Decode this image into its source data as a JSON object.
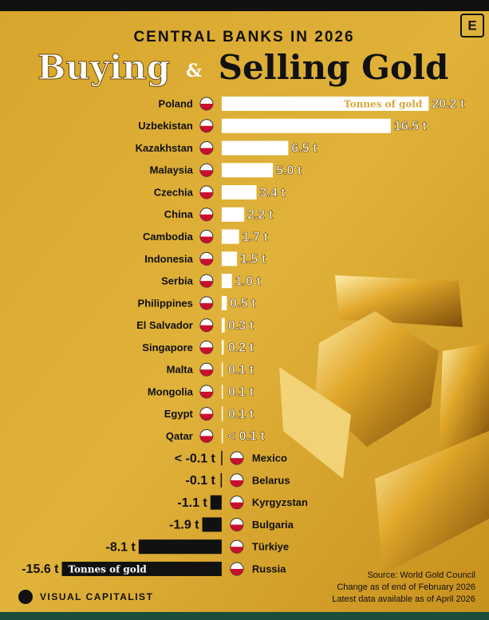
{
  "chart_data": {
    "type": "bar",
    "orientation": "horizontal",
    "title": "CENTRAL BANKS IN 2026",
    "headline": [
      "Buying",
      "&",
      "Selling Gold"
    ],
    "categories": [
      "Poland",
      "Uzbekistan",
      "Kazakhstan",
      "Malaysia",
      "Czechia",
      "China",
      "Cambodia",
      "Indonesia",
      "Serbia",
      "Philippines",
      "El Salvador",
      "Singapore",
      "Malta",
      "Mongolia",
      "Egypt",
      "Qatar",
      "Mexico",
      "Belarus",
      "Kyrgyzstan",
      "Bulgaria",
      "Türkiye",
      "Russia"
    ],
    "values": [
      20.2,
      16.5,
      6.5,
      5.0,
      3.4,
      2.2,
      1.7,
      1.5,
      1.0,
      0.5,
      0.3,
      0.2,
      0.1,
      0.1,
      0.1,
      0.05,
      -0.05,
      -0.1,
      -1.1,
      -1.9,
      -8.1,
      -15.6
    ],
    "value_labels": [
      "20.2 t",
      "16.5 t",
      "6.5 t",
      "5.0 t",
      "3.4 t",
      "2.2 t",
      "1.7 t",
      "1.5 t",
      "1.0 t",
      "0.5 t",
      "0.3 t",
      "0.2 t",
      "0.1 t",
      "0.1 t",
      "0.1 t",
      "< 0.1 t",
      "< -0.1 t",
      "-0.1 t",
      "-1.1 t",
      "-1.9 t",
      "-8.1 t",
      "-15.6 t"
    ],
    "positive_color": "#ffffff",
    "negative_color": "#111111",
    "xlim": [
      -20,
      25
    ],
    "annotations": [
      "Tonnes of gold",
      "Tonnes of gold"
    ],
    "source": [
      "Source: World Gold Council",
      "Change as of end of February 2026",
      "Latest data available as of April 2026"
    ],
    "brand": "VISUAL CAPITALIST",
    "logo": "E"
  }
}
